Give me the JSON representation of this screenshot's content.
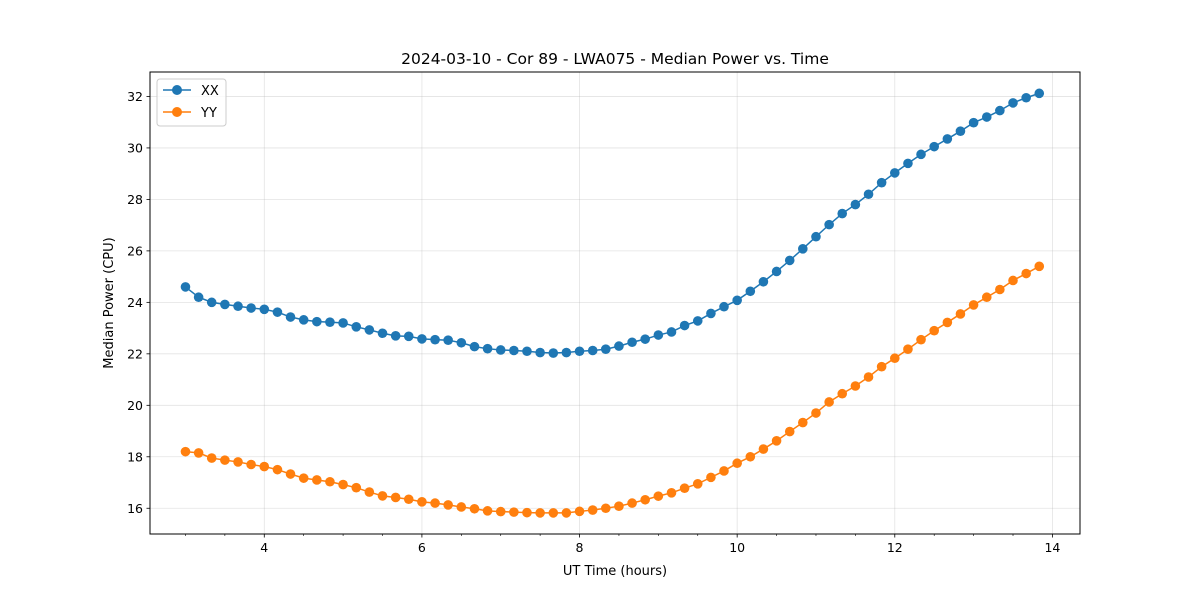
{
  "chart_data": {
    "type": "line",
    "title": "2024-03-10 - Cor 89 - LWA075 - Median Power vs. Time",
    "xlabel": "UT Time (hours)",
    "ylabel": "Median Power (CPU)",
    "xlim": [
      2.55,
      14.35
    ],
    "ylim": [
      15.0,
      32.95
    ],
    "xticks": [
      4,
      6,
      8,
      10,
      12,
      14
    ],
    "xtick_labels": [
      "4",
      "6",
      "8",
      "10",
      "12",
      "14"
    ],
    "yticks": [
      16,
      18,
      20,
      22,
      24,
      26,
      28,
      30,
      32
    ],
    "ytick_labels": [
      "16",
      "18",
      "20",
      "22",
      "24",
      "26",
      "28",
      "30",
      "32"
    ],
    "grid": true,
    "legend_position": "top-left",
    "x": [
      3.0,
      3.167,
      3.333,
      3.5,
      3.667,
      3.833,
      4.0,
      4.167,
      4.333,
      4.5,
      4.667,
      4.833,
      5.0,
      5.167,
      5.333,
      5.5,
      5.667,
      5.833,
      6.0,
      6.167,
      6.333,
      6.5,
      6.667,
      6.833,
      7.0,
      7.167,
      7.333,
      7.5,
      7.667,
      7.833,
      8.0,
      8.167,
      8.333,
      8.5,
      8.667,
      8.833,
      9.0,
      9.167,
      9.333,
      9.5,
      9.667,
      9.833,
      10.0,
      10.167,
      10.333,
      10.5,
      10.667,
      10.833,
      11.0,
      11.167,
      11.333,
      11.5,
      11.667,
      11.833,
      12.0,
      12.167,
      12.333,
      12.5,
      12.667,
      12.833,
      13.0,
      13.167,
      13.333,
      13.5,
      13.667,
      13.833
    ],
    "series": [
      {
        "name": "XX",
        "color": "#1f77b4",
        "values": [
          24.6,
          24.2,
          24.0,
          23.92,
          23.85,
          23.78,
          23.73,
          23.62,
          23.43,
          23.32,
          23.25,
          23.23,
          23.2,
          23.05,
          22.93,
          22.8,
          22.7,
          22.68,
          22.58,
          22.55,
          22.53,
          22.43,
          22.28,
          22.2,
          22.15,
          22.13,
          22.1,
          22.05,
          22.03,
          22.05,
          22.1,
          22.13,
          22.18,
          22.3,
          22.45,
          22.57,
          22.73,
          22.85,
          23.1,
          23.28,
          23.57,
          23.83,
          24.08,
          24.43,
          24.8,
          25.2,
          25.63,
          26.08,
          26.55,
          27.02,
          27.45,
          27.8,
          28.2,
          28.65,
          29.03,
          29.4,
          29.75,
          30.05,
          30.35,
          30.65,
          30.98,
          31.2,
          31.45,
          31.75,
          31.95,
          32.12
        ]
      },
      {
        "name": "YY",
        "color": "#ff7f0e",
        "values": [
          18.2,
          18.15,
          17.95,
          17.87,
          17.8,
          17.7,
          17.62,
          17.5,
          17.33,
          17.17,
          17.1,
          17.03,
          16.92,
          16.8,
          16.63,
          16.48,
          16.42,
          16.35,
          16.25,
          16.2,
          16.13,
          16.05,
          15.98,
          15.9,
          15.87,
          15.85,
          15.83,
          15.82,
          15.82,
          15.82,
          15.88,
          15.93,
          16.0,
          16.08,
          16.2,
          16.33,
          16.47,
          16.6,
          16.78,
          16.95,
          17.2,
          17.45,
          17.75,
          18.0,
          18.3,
          18.62,
          18.98,
          19.33,
          19.7,
          20.13,
          20.45,
          20.75,
          21.1,
          21.5,
          21.83,
          22.18,
          22.55,
          22.9,
          23.22,
          23.55,
          23.9,
          24.2,
          24.5,
          24.85,
          25.12,
          25.4
        ]
      }
    ]
  }
}
